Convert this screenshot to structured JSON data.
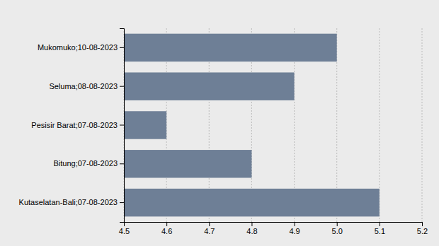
{
  "chart_data": {
    "type": "bar",
    "orientation": "horizontal",
    "categories": [
      "Kutaselatan-Bali;07-08-2023",
      "Bitung;07-08-2023",
      "Pesisir Barat;07-08-2023",
      "Seluma;08-08-2023",
      "Mukomuko;10-08-2023"
    ],
    "values": [
      5.1,
      4.8,
      4.6,
      4.9,
      5.0
    ],
    "color": "#6e7f96",
    "xlim": [
      4.5,
      5.2
    ],
    "xticks": [
      4.5,
      4.6,
      4.7,
      4.8,
      4.9,
      {
        "value": 5,
        "label": "5.0"
      },
      5.1,
      5.2
    ],
    "grid": true
  }
}
